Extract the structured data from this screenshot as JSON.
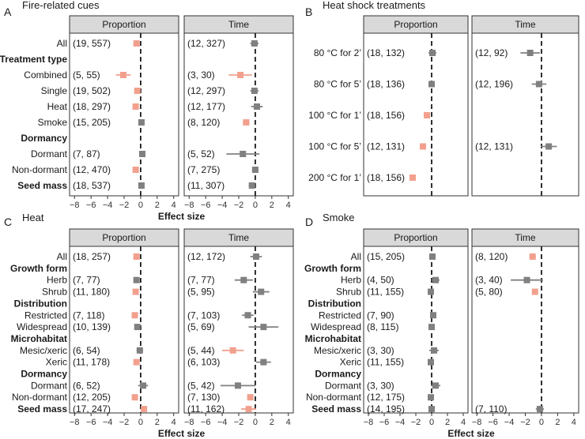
{
  "chart_data": [
    {
      "type": "forest",
      "tag": "A",
      "title": "Fire-related cues",
      "facets": [
        "Proportion",
        "Time"
      ],
      "xlabel": "Effect size",
      "xlim": [
        -8.6,
        4.6
      ],
      "xticks": [
        -8,
        -6,
        -4,
        -2,
        0,
        2,
        4
      ],
      "rows": [
        {
          "label": "All",
          "header": false,
          "cells": [
            {
              "n": "(19, 557)",
              "est": -0.5,
              "lo": -0.8,
              "hi": -0.2,
              "sig": true
            },
            {
              "n": "(12, 327)",
              "est": -0.1,
              "lo": -0.6,
              "hi": 0.4,
              "sig": false
            }
          ]
        },
        {
          "label": "Treatment type",
          "header": true,
          "cells": [
            null,
            null
          ]
        },
        {
          "label": "Combined",
          "header": false,
          "cells": [
            {
              "n": "(5, 55)",
              "est": -2.1,
              "lo": -3.0,
              "hi": -1.2,
              "sig": true
            },
            {
              "n": "(3, 30)",
              "est": -1.8,
              "lo": -3.2,
              "hi": -0.4,
              "sig": true
            }
          ]
        },
        {
          "label": "Single",
          "header": false,
          "cells": [
            {
              "n": "(19, 502)",
              "est": -0.4,
              "lo": -0.7,
              "hi": -0.1,
              "sig": true
            },
            {
              "n": "(12, 297)",
              "est": -0.1,
              "lo": -0.6,
              "hi": 0.4,
              "sig": false
            }
          ]
        },
        {
          "label": "Heat",
          "header": false,
          "cells": [
            {
              "n": "(18, 297)",
              "est": -0.6,
              "lo": -0.9,
              "hi": -0.3,
              "sig": true
            },
            {
              "n": "(12, 177)",
              "est": 0.2,
              "lo": -0.5,
              "hi": 0.9,
              "sig": false
            }
          ]
        },
        {
          "label": "Smoke",
          "header": false,
          "cells": [
            {
              "n": "(15, 205)",
              "est": 0.1,
              "lo": -0.1,
              "hi": 0.3,
              "sig": false
            },
            {
              "n": "(8, 120)",
              "est": -1.1,
              "lo": -1.5,
              "hi": -0.7,
              "sig": true
            }
          ]
        },
        {
          "label": "Dormancy",
          "header": true,
          "cells": [
            null,
            null
          ]
        },
        {
          "label": "Dormant",
          "header": false,
          "cells": [
            {
              "n": "(7, 87)",
              "est": 0.2,
              "lo": -0.1,
              "hi": 0.5,
              "sig": false
            },
            {
              "n": "(5, 52)",
              "est": -1.5,
              "lo": -3.5,
              "hi": 0.5,
              "sig": false
            }
          ]
        },
        {
          "label": "Non-dormant",
          "header": false,
          "cells": [
            {
              "n": "(12, 470)",
              "est": -0.6,
              "lo": -0.9,
              "hi": -0.3,
              "sig": true
            },
            {
              "n": "(7, 275)",
              "est": 0.0,
              "lo": -0.4,
              "hi": 0.4,
              "sig": false
            }
          ]
        },
        {
          "label": "Seed mass",
          "header": true,
          "cells": [
            {
              "n": "(18, 537)",
              "est": 0.1,
              "lo": -0.1,
              "hi": 0.3,
              "sig": false
            },
            {
              "n": "(11, 307)",
              "est": -0.4,
              "lo": -0.8,
              "hi": 0.0,
              "sig": false
            }
          ]
        }
      ]
    },
    {
      "type": "forest",
      "tag": "B",
      "title": "Heat shock treatments",
      "facets": [
        "Proportion",
        "Time"
      ],
      "xlabel": "",
      "xlim": [
        -8.6,
        4.6
      ],
      "xticks": [],
      "rows": [
        {
          "label": "80 °C for 2’",
          "header": false,
          "cells": [
            {
              "n": "(18, 132)",
              "est": 0.1,
              "lo": -0.4,
              "hi": 0.6,
              "sig": false
            },
            {
              "n": "(12, 92)",
              "est": -1.4,
              "lo": -2.6,
              "hi": -0.2,
              "sig": false
            }
          ]
        },
        {
          "label": "80 °C for 5’",
          "header": false,
          "cells": [
            {
              "n": "(18, 136)",
              "est": 0.0,
              "lo": -0.4,
              "hi": 0.4,
              "sig": false
            },
            {
              "n": "(12, 196)",
              "est": -0.3,
              "lo": -1.2,
              "hi": 0.6,
              "sig": false
            }
          ]
        },
        {
          "label": "100 °C for 1’",
          "header": false,
          "cells": [
            {
              "n": "(18, 156)",
              "est": -0.6,
              "lo": -0.9,
              "hi": -0.3,
              "sig": true
            },
            null
          ]
        },
        {
          "label": "100 °C for 5’",
          "header": false,
          "cells": [
            {
              "n": "(12, 131)",
              "est": -1.1,
              "lo": -1.4,
              "hi": -0.8,
              "sig": true
            },
            {
              "n": "(12, 131)",
              "est": 0.9,
              "lo": -0.1,
              "hi": 1.9,
              "sig": false
            }
          ]
        },
        {
          "label": "200 °C for 1’",
          "header": false,
          "cells": [
            {
              "n": "(18, 156)",
              "est": -2.4,
              "lo": -2.8,
              "hi": -2.0,
              "sig": true
            },
            null
          ]
        }
      ]
    },
    {
      "type": "forest",
      "tag": "C",
      "title": "Heat",
      "facets": [
        "Proportion",
        "Time"
      ],
      "xlabel": "Effect size",
      "xlim": [
        -8.6,
        4.6
      ],
      "xticks": [
        -8,
        -6,
        -4,
        -2,
        0,
        2,
        4
      ],
      "rows": [
        {
          "label": "All",
          "header": false,
          "cells": [
            {
              "n": "(18, 257)",
              "est": -0.5,
              "lo": -0.8,
              "hi": -0.2,
              "sig": true
            },
            {
              "n": "(12, 172)",
              "est": 0.1,
              "lo": -0.6,
              "hi": 0.8,
              "sig": false
            }
          ]
        },
        {
          "label": "Growth form",
          "header": true,
          "cells": [
            null,
            null
          ]
        },
        {
          "label": "Herb",
          "header": false,
          "cells": [
            {
              "n": "(7, 77)",
              "est": -0.5,
              "lo": -0.8,
              "hi": -0.2,
              "sig": false
            },
            {
              "n": "(7, 77)",
              "est": -1.4,
              "lo": -2.5,
              "hi": -0.3,
              "sig": false
            }
          ]
        },
        {
          "label": "Shrub",
          "header": false,
          "cells": [
            {
              "n": "(11, 180)",
              "est": -0.6,
              "lo": -0.9,
              "hi": -0.3,
              "sig": true
            },
            {
              "n": "(5, 95)",
              "est": 0.7,
              "lo": -0.3,
              "hi": 1.7,
              "sig": false
            }
          ]
        },
        {
          "label": "Distribution",
          "header": true,
          "cells": [
            null,
            null
          ]
        },
        {
          "label": "Restricted",
          "header": false,
          "cells": [
            {
              "n": "(7, 118)",
              "est": -0.7,
              "lo": -1.0,
              "hi": -0.4,
              "sig": true
            },
            {
              "n": "(7, 103)",
              "est": -0.9,
              "lo": -1.6,
              "hi": -0.2,
              "sig": false
            }
          ]
        },
        {
          "label": "Widespread",
          "header": false,
          "cells": [
            {
              "n": "(10, 139)",
              "est": -0.4,
              "lo": -0.7,
              "hi": -0.1,
              "sig": false
            },
            {
              "n": "(5, 69)",
              "est": 1.0,
              "lo": -0.8,
              "hi": 2.8,
              "sig": false
            }
          ]
        },
        {
          "label": "Microhabitat",
          "header": true,
          "cells": [
            null,
            null
          ]
        },
        {
          "label": "Mesic/xeric",
          "header": false,
          "cells": [
            {
              "n": "(6, 54)",
              "est": -0.1,
              "lo": -0.5,
              "hi": 0.3,
              "sig": false
            },
            {
              "n": "(5, 44)",
              "est": -2.7,
              "lo": -4.0,
              "hi": -1.4,
              "sig": true
            }
          ]
        },
        {
          "label": "Xeric",
          "header": false,
          "cells": [
            {
              "n": "(11, 178)",
              "est": -0.5,
              "lo": -0.8,
              "hi": -0.2,
              "sig": true
            },
            {
              "n": "(6, 103)",
              "est": 1.0,
              "lo": 0.1,
              "hi": 1.9,
              "sig": false
            }
          ]
        },
        {
          "label": "Dormancy",
          "header": true,
          "cells": [
            null,
            null
          ]
        },
        {
          "label": "Dormant",
          "header": false,
          "cells": [
            {
              "n": "(6, 52)",
              "est": 0.3,
              "lo": -0.3,
              "hi": 0.9,
              "sig": false
            },
            {
              "n": "(5, 42)",
              "est": -2.1,
              "lo": -4.2,
              "hi": 0.0,
              "sig": false
            }
          ]
        },
        {
          "label": "Non-dormant",
          "header": false,
          "cells": [
            {
              "n": "(12, 205)",
              "est": -0.7,
              "lo": -1.0,
              "hi": -0.4,
              "sig": true
            },
            {
              "n": "(7, 130)",
              "est": -0.6,
              "lo": -0.9,
              "hi": -0.3,
              "sig": true
            }
          ]
        },
        {
          "label": "Seed mass",
          "header": true,
          "cells": [
            {
              "n": "(17, 247)",
              "est": 0.4,
              "lo": 0.1,
              "hi": 0.7,
              "sig": true
            },
            {
              "n": "(11, 162)",
              "est": -0.8,
              "lo": -1.7,
              "hi": 0.1,
              "sig": true
            }
          ]
        }
      ]
    },
    {
      "type": "forest",
      "tag": "D",
      "title": "Smoke",
      "facets": [
        "Proportion",
        "Time"
      ],
      "xlabel": "Effect size",
      "xlim": [
        -8.6,
        4.6
      ],
      "xticks": [
        -8,
        -6,
        -4,
        -2,
        0,
        2,
        4
      ],
      "rows": [
        {
          "label": "All",
          "header": false,
          "cells": [
            {
              "n": "(15, 205)",
              "est": 0.1,
              "lo": -0.1,
              "hi": 0.3,
              "sig": false
            },
            {
              "n": "(8, 120)",
              "est": -1.1,
              "lo": -1.5,
              "hi": -0.7,
              "sig": true
            }
          ]
        },
        {
          "label": "Growth form",
          "header": true,
          "cells": [
            null,
            null
          ]
        },
        {
          "label": "Herb",
          "header": false,
          "cells": [
            {
              "n": "(4, 50)",
              "est": 0.5,
              "lo": 0.0,
              "hi": 1.0,
              "sig": false
            },
            {
              "n": "(3, 40)",
              "est": -1.8,
              "lo": -3.8,
              "hi": 0.2,
              "sig": false
            }
          ]
        },
        {
          "label": "Shrub",
          "header": false,
          "cells": [
            {
              "n": "(11, 155)",
              "est": -0.1,
              "lo": -0.3,
              "hi": 0.1,
              "sig": false
            },
            {
              "n": "(5, 80)",
              "est": -0.8,
              "lo": -1.1,
              "hi": -0.5,
              "sig": true
            }
          ]
        },
        {
          "label": "Distribution",
          "header": true,
          "cells": [
            null,
            null
          ]
        },
        {
          "label": "Restricted",
          "header": false,
          "cells": [
            {
              "n": "(7, 90)",
              "est": 0.2,
              "lo": -0.1,
              "hi": 0.5,
              "sig": false
            },
            null
          ]
        },
        {
          "label": "Widespread",
          "header": false,
          "cells": [
            {
              "n": "(8, 115)",
              "est": 0.0,
              "lo": -0.2,
              "hi": 0.2,
              "sig": false
            },
            null
          ]
        },
        {
          "label": "Microhabitat",
          "header": true,
          "cells": [
            null,
            null
          ]
        },
        {
          "label": "Mesic/xeric",
          "header": false,
          "cells": [
            {
              "n": "(3, 30)",
              "est": 0.3,
              "lo": -0.3,
              "hi": 0.9,
              "sig": false
            },
            null
          ]
        },
        {
          "label": "Xeric",
          "header": false,
          "cells": [
            {
              "n": "(11, 155)",
              "est": -0.1,
              "lo": -0.3,
              "hi": 0.1,
              "sig": false
            },
            null
          ]
        },
        {
          "label": "Dormancy",
          "header": true,
          "cells": [
            null,
            null
          ]
        },
        {
          "label": "Dormant",
          "header": false,
          "cells": [
            {
              "n": "(3, 30)",
              "est": 0.5,
              "lo": -0.1,
              "hi": 1.1,
              "sig": false
            },
            null
          ]
        },
        {
          "label": "Non-dormant",
          "header": false,
          "cells": [
            {
              "n": "(12, 175)",
              "est": -0.1,
              "lo": -0.3,
              "hi": 0.1,
              "sig": false
            },
            null
          ]
        },
        {
          "label": "Seed mass",
          "header": true,
          "cells": [
            {
              "n": "(14, 195)",
              "est": 0.0,
              "lo": -0.2,
              "hi": 0.2,
              "sig": false
            },
            {
              "n": "(7, 110)",
              "est": -0.2,
              "lo": -0.7,
              "hi": 0.3,
              "sig": false
            }
          ]
        }
      ]
    }
  ],
  "colors": {
    "significant": "#f2a08e",
    "nonsignificant": "#808080",
    "strip": "#d9d9d9"
  }
}
